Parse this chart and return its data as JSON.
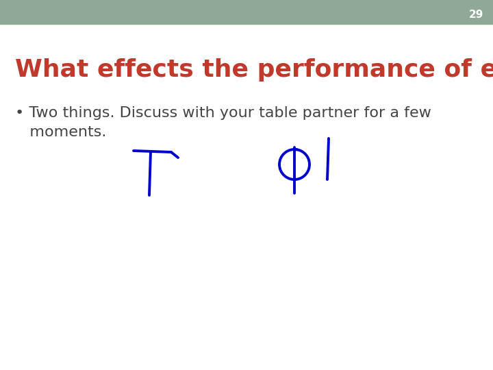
{
  "slide_number": "29",
  "header_bg_color": "#8FA898",
  "header_text_color": "#FFFFFF",
  "header_fontsize": 11,
  "title_text": "What effects the performance of enzymes?",
  "title_color": "#C0392B",
  "title_fontsize": 26,
  "bullet_text": "• Two things. Discuss with your table partner for a few\n   moments.",
  "bullet_color": "#444444",
  "bullet_fontsize": 16,
  "background_color": "#FFFFFF",
  "handwriting_color": "#0000CC"
}
